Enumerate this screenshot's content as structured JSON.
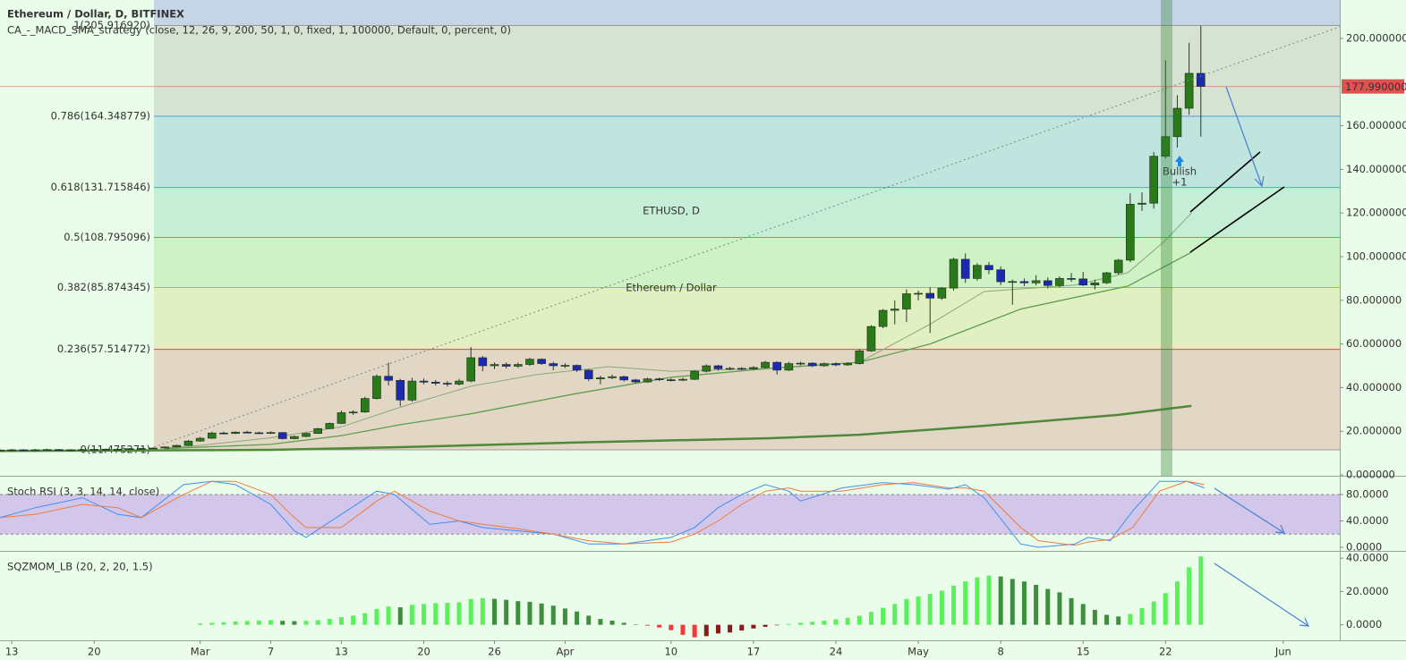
{
  "chart_data": [
    {
      "type": "candlestick",
      "title": "Ethereum / Dollar, D, BITFINEX",
      "subtitle": "CA_-_MACD_SMA_strategy (close, 12, 26, 9, 200, 50, 1, 0, fixed, 1, 100000, Default, 0, percent, 0)",
      "watermark": [
        "ETHUSD, D",
        "Ethereum / Dollar"
      ],
      "xlim": [
        0,
        113.8
      ],
      "ylim": [
        -0.4,
        217.6
      ],
      "yticks": [
        {
          "value": 0,
          "label": "0.000000"
        },
        {
          "value": 20,
          "label": "20.000000"
        },
        {
          "value": 40,
          "label": "40.000000"
        },
        {
          "value": 60,
          "label": "60.000000"
        },
        {
          "value": 80,
          "label": "80.000000"
        },
        {
          "value": 100,
          "label": "100.000000"
        },
        {
          "value": 120,
          "label": "120.000000"
        },
        {
          "value": 140,
          "label": "140.000000"
        },
        {
          "value": 160,
          "label": "160.000000"
        },
        {
          "value": 200,
          "label": "200.000000"
        }
      ],
      "up_color": "#2a7a1a",
      "down_color": "#1c2ab0",
      "top_fill": "#c5d5e6",
      "fib_levels": [
        {
          "value": 205.91692,
          "label": "1(205.916920)",
          "color": "#8a8a8a",
          "fill": "#d6e2d2"
        },
        {
          "value": 164.348779,
          "label": "0.786(164.348779)",
          "color": "#2a8fd6",
          "fill": "#c0e5df"
        },
        {
          "value": 131.715846,
          "label": "0.618(131.715846)",
          "color": "#1fae8a",
          "fill": "#c6edd6"
        },
        {
          "value": 108.795096,
          "label": "0.5(108.795096)",
          "color": "#27b23a",
          "fill": "#cff1c6"
        },
        {
          "value": 85.874345,
          "label": "0.382(85.874345)",
          "color": "#8cb814",
          "fill": "#e0f0c2"
        },
        {
          "value": 57.514772,
          "label": "0.236(57.514772)",
          "color": "#d0202a",
          "fill": "#e2d7c5"
        },
        {
          "value": 11.475271,
          "label": "0(11.475271)",
          "color": "#8a8a8a"
        }
      ],
      "last_price": {
        "value": 177.99,
        "label": "177.990000",
        "color": "#e0524f"
      },
      "annotation": [
        "Bullish",
        "+1"
      ],
      "series": [
        {
          "color": "#8aa878",
          "width": 1,
          "x": [
            14,
            17,
            23,
            29,
            34,
            40,
            45.6,
            51.7,
            57,
            65.4,
            73,
            79,
            83.6,
            91.3,
            95.8,
            98.9,
            101.2
          ],
          "values": [
            12.3,
            13.5,
            17,
            22,
            31,
            40.6,
            46,
            49.6,
            47.5,
            48.8,
            51.6,
            69,
            84,
            87,
            92.6,
            107,
            120
          ]
        },
        {
          "color": "#5e9e4e",
          "width": 1.3,
          "x": [
            14,
            17,
            23,
            29,
            34,
            40,
            48.7,
            57,
            65.4,
            73,
            79,
            86.7,
            95.8,
            101.2
          ],
          "values": [
            12,
            12.7,
            14,
            18,
            23,
            28,
            37,
            44.7,
            48.8,
            51.6,
            60,
            76,
            86.5,
            102
          ]
        },
        {
          "color": "#4e8a3a",
          "width": 2.5,
          "x": [
            0,
            23,
            34,
            48.7,
            65.4,
            73,
            83.6,
            95,
            101.2
          ],
          "values": [
            11,
            11.5,
            12.7,
            14.8,
            16.8,
            18.4,
            22.5,
            27.5,
            31.6
          ]
        }
      ],
      "ohlc": [
        [
          11.3,
          11.8,
          11.1,
          11.4
        ],
        [
          11.4,
          11.9,
          11.2,
          11.5
        ],
        [
          11.5,
          11.8,
          11.0,
          11.3
        ],
        [
          11.3,
          11.9,
          11.1,
          11.5
        ],
        [
          11.5,
          12.0,
          11.3,
          11.6
        ],
        [
          11.6,
          11.9,
          11.2,
          11.4
        ],
        [
          11.4,
          11.8,
          11.2,
          11.5
        ],
        [
          11.5,
          11.9,
          11.3,
          11.6
        ],
        [
          11.6,
          12.0,
          11.4,
          11.7
        ],
        [
          11.7,
          12.1,
          11.5,
          11.8
        ],
        [
          11.8,
          12.2,
          11.6,
          11.8
        ],
        [
          11.8,
          12.3,
          11.6,
          12.0
        ],
        [
          12.0,
          12.4,
          11.8,
          12.1
        ],
        [
          12.1,
          12.6,
          11.9,
          12.3
        ],
        [
          12.3,
          13.1,
          12.1,
          12.8
        ],
        [
          12.8,
          13.9,
          12.6,
          13.5
        ],
        [
          13.5,
          16.0,
          13.3,
          15.5
        ],
        [
          15.5,
          17.4,
          15.2,
          16.8
        ],
        [
          16.8,
          19.8,
          16.5,
          19.2
        ],
        [
          19.2,
          19.8,
          18.6,
          19.0
        ],
        [
          19.0,
          20.0,
          18.7,
          19.6
        ],
        [
          19.6,
          20.2,
          19.0,
          19.3
        ],
        [
          19.3,
          19.8,
          18.8,
          19.1
        ],
        [
          19.1,
          20.0,
          18.8,
          19.4
        ],
        [
          19.4,
          19.6,
          16.2,
          16.6
        ],
        [
          16.6,
          18.0,
          16.3,
          17.6
        ],
        [
          17.6,
          19.4,
          17.3,
          19.0
        ],
        [
          19.0,
          21.6,
          18.8,
          21.2
        ],
        [
          21.2,
          24.0,
          21.0,
          23.6
        ],
        [
          23.6,
          29.5,
          23.3,
          28.5
        ],
        [
          28.5,
          29.6,
          27.5,
          28.8
        ],
        [
          28.8,
          35.8,
          28.5,
          35.0
        ],
        [
          35.0,
          46.0,
          34.5,
          45.2
        ],
        [
          45.2,
          51.5,
          41.0,
          43.3
        ],
        [
          43.3,
          44.0,
          31.5,
          34.3
        ],
        [
          34.3,
          44.5,
          33.5,
          43.0
        ],
        [
          43.0,
          44.2,
          41.5,
          42.5
        ],
        [
          42.5,
          43.5,
          41.0,
          42.0
        ],
        [
          42.0,
          43.0,
          40.5,
          41.6
        ],
        [
          41.6,
          44.0,
          41.0,
          43.0
        ],
        [
          43.0,
          58.6,
          42.5,
          53.7
        ],
        [
          53.7,
          54.5,
          47.5,
          50.0
        ],
        [
          50.0,
          51.5,
          48.5,
          50.6
        ],
        [
          50.6,
          51.5,
          48.8,
          49.8
        ],
        [
          49.8,
          51.5,
          49.0,
          50.6
        ],
        [
          50.6,
          53.6,
          50.0,
          53.0
        ],
        [
          53.0,
          53.4,
          50.4,
          51.0
        ],
        [
          51.0,
          51.8,
          48.0,
          50.0
        ],
        [
          50.0,
          51.2,
          49.0,
          50.2
        ],
        [
          50.2,
          50.6,
          47.2,
          48.0
        ],
        [
          48.0,
          48.4,
          43.0,
          44.0
        ],
        [
          44.0,
          45.5,
          41.5,
          44.5
        ],
        [
          44.5,
          46.0,
          43.8,
          45.0
        ],
        [
          45.0,
          45.5,
          42.8,
          43.5
        ],
        [
          43.5,
          44.0,
          42.0,
          42.6
        ],
        [
          42.6,
          44.5,
          42.2,
          44.0
        ],
        [
          44.0,
          44.6,
          43.0,
          43.6
        ],
        [
          43.6,
          44.2,
          42.8,
          43.4
        ],
        [
          43.4,
          44.5,
          43.0,
          43.8
        ],
        [
          43.8,
          48.0,
          43.5,
          47.5
        ],
        [
          47.5,
          50.6,
          47.0,
          50.0
        ],
        [
          50.0,
          50.5,
          47.8,
          48.6
        ],
        [
          48.6,
          49.5,
          48.0,
          48.8
        ],
        [
          48.8,
          49.4,
          47.9,
          48.6
        ],
        [
          48.6,
          49.8,
          48.2,
          49.2
        ],
        [
          49.2,
          52.2,
          48.8,
          51.6
        ],
        [
          51.6,
          52.0,
          46.0,
          48.0
        ],
        [
          48.0,
          51.8,
          47.6,
          51.0
        ],
        [
          51.0,
          51.8,
          50.2,
          51.2
        ],
        [
          51.2,
          51.6,
          49.4,
          50.0
        ],
        [
          50.0,
          51.5,
          49.6,
          51.0
        ],
        [
          51.0,
          51.6,
          49.8,
          50.4
        ],
        [
          50.4,
          51.6,
          50.0,
          51.0
        ],
        [
          51.0,
          57.6,
          50.6,
          56.8
        ],
        [
          56.8,
          68.6,
          56.4,
          68.0
        ],
        [
          68.0,
          76.0,
          67.2,
          75.4
        ],
        [
          75.4,
          80.0,
          69.0,
          76.0
        ],
        [
          76.0,
          85.0,
          70.0,
          83.0
        ],
        [
          83.0,
          84.5,
          80.0,
          83.2
        ],
        [
          83.2,
          86.0,
          65.0,
          81.0
        ],
        [
          81.0,
          86.0,
          80.2,
          85.6
        ],
        [
          85.6,
          99.5,
          84.5,
          98.8
        ],
        [
          98.8,
          101.5,
          88.0,
          90.0
        ],
        [
          90.0,
          97.0,
          89.0,
          96.0
        ],
        [
          96.0,
          97.5,
          92.0,
          94.0
        ],
        [
          94.0,
          95.5,
          87.0,
          88.5
        ],
        [
          88.5,
          89.5,
          78.0,
          88.6
        ],
        [
          88.6,
          90.0,
          86.5,
          88.0
        ],
        [
          88.0,
          91.5,
          86.8,
          89.0
        ],
        [
          89.0,
          90.5,
          85.5,
          86.8
        ],
        [
          86.8,
          91.0,
          86.0,
          90.0
        ],
        [
          90.0,
          92.5,
          88.5,
          89.8
        ],
        [
          89.8,
          93.0,
          86.5,
          87.0
        ],
        [
          87.0,
          89.5,
          85.0,
          88.0
        ],
        [
          88.0,
          93.0,
          87.5,
          92.6
        ],
        [
          92.6,
          99.0,
          91.8,
          98.4
        ],
        [
          98.4,
          129.0,
          97.5,
          124.0
        ],
        [
          124.0,
          129.5,
          121.0,
          124.5
        ],
        [
          124.5,
          148.0,
          122.0,
          146.0
        ],
        [
          146.0,
          190.0,
          145.0,
          155.0
        ],
        [
          155.0,
          174.0,
          150.0,
          168.0
        ],
        [
          168.0,
          198.0,
          165.0,
          184.0
        ],
        [
          184.0,
          205.9,
          155.0,
          178.0
        ]
      ]
    },
    {
      "type": "line",
      "title": "Stoch RSI (3, 3, 14, 14, close)",
      "xlim": [
        0,
        113.8
      ],
      "ylim": [
        -5.4,
        107
      ],
      "yticks": [
        {
          "value": 0,
          "label": "0.0000"
        },
        {
          "value": 40,
          "label": "40.0000"
        },
        {
          "value": 80,
          "label": "80.0000"
        }
      ],
      "band": [
        20,
        80
      ],
      "band_color": "#c9b6ea",
      "x": [
        0,
        3,
        7,
        10,
        12,
        15.6,
        18,
        20,
        23,
        25,
        26,
        29,
        32,
        33.5,
        36.5,
        39,
        41,
        44,
        47,
        50,
        53,
        57,
        59,
        61,
        63,
        65,
        67,
        68,
        71.5,
        75,
        77.6,
        80.6,
        82,
        83.6,
        86.7,
        88.2,
        91.3,
        92.4,
        94.3,
        96.2,
        98.5,
        100.8,
        102.3
      ],
      "series": [
        {
          "color": "#3f8ff0",
          "values": [
            45,
            60,
            75,
            50,
            45,
            95,
            100,
            95,
            65,
            25,
            15,
            50,
            85,
            80,
            35,
            40,
            30,
            25,
            20,
            5,
            5,
            15,
            30,
            60,
            80,
            95,
            85,
            70,
            90,
            98,
            95,
            88,
            95,
            75,
            5,
            0,
            5,
            15,
            10,
            55,
            100,
            100,
            90
          ]
        },
        {
          "color": "#f07a3a",
          "values": [
            45,
            50,
            65,
            60,
            45,
            80,
            100,
            100,
            80,
            45,
            30,
            30,
            70,
            85,
            55,
            40,
            35,
            28,
            20,
            10,
            5,
            8,
            20,
            40,
            65,
            85,
            90,
            85,
            85,
            95,
            98,
            90,
            90,
            85,
            30,
            10,
            3,
            8,
            12,
            30,
            85,
            100,
            95
          ]
        }
      ]
    },
    {
      "type": "bar",
      "title": "SQZMOM_LB (20, 2, 20, 1.5)",
      "xlim": [
        0,
        113.8
      ],
      "ylim": [
        -9.3,
        43.8
      ],
      "yticks": [
        {
          "value": 0,
          "label": "0.0000"
        },
        {
          "value": 20,
          "label": "20.0000"
        },
        {
          "value": 40,
          "label": "40.0000"
        }
      ],
      "xticks": [
        {
          "value": 1,
          "label": "13"
        },
        {
          "value": 8,
          "label": "20"
        },
        {
          "value": 17,
          "label": "Mar"
        },
        {
          "value": 23,
          "label": "7"
        },
        {
          "value": 29,
          "label": "13"
        },
        {
          "value": 36,
          "label": "20"
        },
        {
          "value": 42,
          "label": "26"
        },
        {
          "value": 48,
          "label": "Apr"
        },
        {
          "value": 57,
          "label": "10"
        },
        {
          "value": 64,
          "label": "17"
        },
        {
          "value": 71,
          "label": "24"
        },
        {
          "value": 78,
          "label": "May"
        },
        {
          "value": 85,
          "label": "8"
        },
        {
          "value": 92,
          "label": "15"
        },
        {
          "value": 99,
          "label": "22"
        },
        {
          "value": 109,
          "label": "Jun"
        }
      ],
      "colors": {
        "pos_rising": "#5cf05c",
        "pos_falling": "#3e8e3e",
        "neg_falling": "#f03a3a",
        "neg_rising": "#8b1a1a"
      },
      "values": [
        null,
        null,
        null,
        null,
        null,
        null,
        null,
        null,
        null,
        null,
        null,
        null,
        null,
        null,
        null,
        null,
        null,
        0.8,
        1.2,
        1.6,
        2.0,
        2.3,
        2.6,
        2.8,
        2.4,
        2.2,
        2.4,
        2.8,
        3.5,
        4.6,
        5.5,
        7.0,
        9.5,
        11.0,
        10.5,
        12.0,
        12.5,
        13.0,
        13.2,
        13.5,
        15.5,
        16.0,
        15.6,
        15.0,
        14.2,
        13.8,
        12.8,
        11.5,
        9.8,
        8.0,
        5.5,
        3.5,
        2.5,
        1.2,
        0.3,
        -0.5,
        -1.6,
        -3.2,
        -6.0,
        -7.5,
        -6.8,
        -5.2,
        -4.6,
        -3.4,
        -2.2,
        -1.2,
        -0.3,
        0.5,
        1.2,
        1.8,
        2.5,
        3.3,
        4.2,
        5.4,
        7.8,
        10.2,
        12.5,
        15.5,
        17.0,
        18.5,
        20.5,
        23.5,
        26.0,
        28.5,
        29.5,
        29.0,
        27.5,
        26.0,
        24.0,
        21.5,
        19.5,
        16.0,
        12.5,
        9.0,
        6.0,
        5.0,
        6.5,
        10.0,
        14.0,
        19.0,
        26.0,
        34.5,
        41.0
      ]
    }
  ]
}
